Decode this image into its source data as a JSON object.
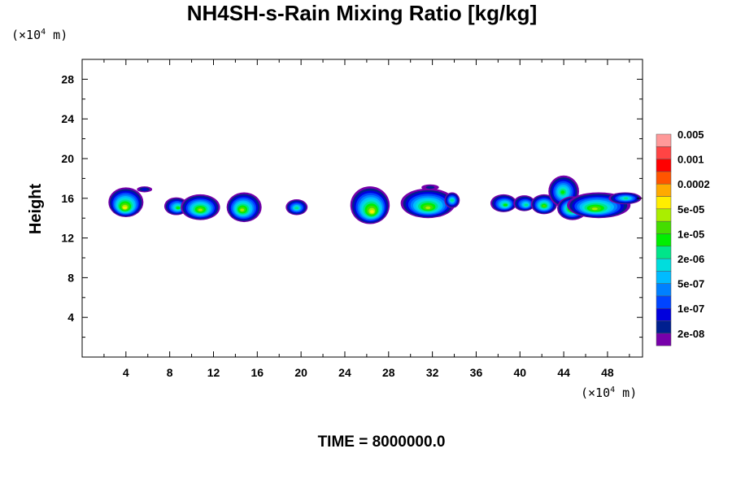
{
  "chart_data": {
    "type": "contour",
    "title": "NH4SH-s-Rain Mixing Ratio [kg/kg]",
    "ylabel": "Height",
    "x_unit": {
      "prefix": "(×10",
      "exp": "4",
      "suffix": " m)"
    },
    "y_unit": {
      "prefix": "(×10",
      "exp": "4",
      "suffix": " m)"
    },
    "xlim": [
      0,
      51.2
    ],
    "ylim": [
      0,
      30
    ],
    "x_ticks": [
      4,
      8,
      12,
      16,
      20,
      24,
      28,
      32,
      36,
      40,
      44,
      48
    ],
    "y_ticks": [
      4,
      8,
      12,
      16,
      20,
      24,
      28
    ],
    "time_label": "TIME = 8000000.0",
    "colorbar": {
      "colors": [
        "#7700aa",
        "#001f8f",
        "#0000dd",
        "#0044ff",
        "#0080ff",
        "#00bbff",
        "#00dddd",
        "#00e58a",
        "#00ee00",
        "#44dd00",
        "#aaee00",
        "#ffee00",
        "#ffaa00",
        "#ff5500",
        "#ff0000",
        "#ff4444",
        "#ff9999"
      ],
      "labels": [
        {
          "text": "2e-08",
          "level": 1
        },
        {
          "text": "1e-07",
          "level": 3
        },
        {
          "text": "5e-07",
          "level": 5
        },
        {
          "text": "2e-06",
          "level": 7
        },
        {
          "text": "1e-05",
          "level": 9
        },
        {
          "text": "5e-05",
          "level": 11
        },
        {
          "text": "0.0002",
          "level": 13
        },
        {
          "text": "0.001",
          "level": 15
        },
        {
          "text": "0.005",
          "level": 17
        }
      ]
    },
    "cells": [
      {
        "xc": 4.0,
        "yc": 15.6,
        "rx": 1.6,
        "ry": 1.5,
        "cx": 3.9,
        "cy": 15.0,
        "peak": 11
      },
      {
        "xc": 5.7,
        "yc": 16.9,
        "rx": 0.7,
        "ry": 0.3,
        "cx": 5.7,
        "cy": 16.9,
        "peak": 2
      },
      {
        "xc": 8.6,
        "yc": 15.2,
        "rx": 1.1,
        "ry": 0.9,
        "cx": 8.8,
        "cy": 15.0,
        "peak": 8
      },
      {
        "xc": 10.8,
        "yc": 15.1,
        "rx": 1.8,
        "ry": 1.3,
        "cx": 10.8,
        "cy": 14.8,
        "peak": 10
      },
      {
        "xc": 14.8,
        "yc": 15.1,
        "rx": 1.6,
        "ry": 1.5,
        "cx": 14.6,
        "cy": 14.8,
        "peak": 10
      },
      {
        "xc": 19.6,
        "yc": 15.1,
        "rx": 1.0,
        "ry": 0.8,
        "cx": 19.6,
        "cy": 15.0,
        "peak": 7
      },
      {
        "xc": 26.3,
        "yc": 15.3,
        "rx": 1.8,
        "ry": 1.9,
        "cx": 26.5,
        "cy": 14.6,
        "peak": 11
      },
      {
        "xc": 31.6,
        "yc": 15.5,
        "rx": 2.5,
        "ry": 1.5,
        "cx": 31.6,
        "cy": 15.0,
        "peak": 10
      },
      {
        "xc": 33.8,
        "yc": 15.8,
        "rx": 0.7,
        "ry": 0.8,
        "cx": 33.8,
        "cy": 15.8,
        "peak": 7
      },
      {
        "xc": 31.8,
        "yc": 17.1,
        "rx": 0.8,
        "ry": 0.3,
        "cx": 31.8,
        "cy": 17.1,
        "peak": 1
      },
      {
        "xc": 38.5,
        "yc": 15.5,
        "rx": 1.2,
        "ry": 0.9,
        "cx": 38.7,
        "cy": 15.3,
        "peak": 8
      },
      {
        "xc": 40.4,
        "yc": 15.5,
        "rx": 1.0,
        "ry": 0.8,
        "cx": 40.6,
        "cy": 15.3,
        "peak": 7
      },
      {
        "xc": 42.2,
        "yc": 15.4,
        "rx": 1.2,
        "ry": 1.0,
        "cx": 42.2,
        "cy": 15.2,
        "peak": 9
      },
      {
        "xc": 44.0,
        "yc": 16.7,
        "rx": 1.4,
        "ry": 1.6,
        "cx": 43.9,
        "cy": 16.6,
        "peak": 8
      },
      {
        "xc": 44.8,
        "yc": 15.0,
        "rx": 1.4,
        "ry": 1.2,
        "cx": 44.7,
        "cy": 14.9,
        "peak": 10
      },
      {
        "xc": 47.2,
        "yc": 15.3,
        "rx": 2.9,
        "ry": 1.3,
        "cx": 46.8,
        "cy": 14.9,
        "peak": 10
      },
      {
        "xc": 49.6,
        "yc": 16.0,
        "rx": 1.5,
        "ry": 0.6,
        "cx": 49.7,
        "cy": 16.0,
        "peak": 7
      }
    ]
  }
}
